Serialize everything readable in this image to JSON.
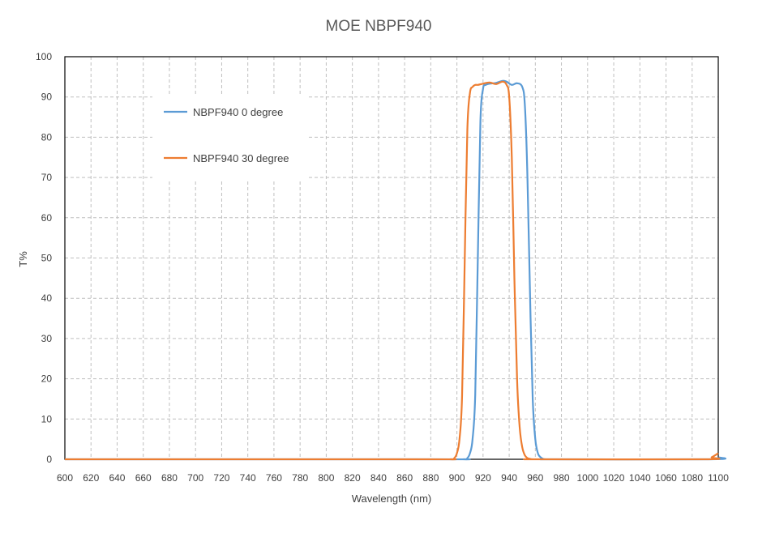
{
  "chart_data": {
    "type": "line",
    "title": "MOE NBPF940",
    "xlabel": "Wavelength (nm)",
    "ylabel": "T%",
    "xlim": [
      600,
      1100
    ],
    "ylim": [
      0,
      100
    ],
    "x_ticks": [
      600,
      620,
      640,
      660,
      680,
      700,
      720,
      740,
      760,
      780,
      800,
      820,
      840,
      860,
      880,
      900,
      920,
      940,
      960,
      980,
      1000,
      1020,
      1040,
      1060,
      1080,
      1100
    ],
    "x_tick_labels": [
      "600",
      "620",
      "640",
      "660",
      "680",
      "700",
      "720",
      "740",
      "760",
      "780",
      "800",
      "820",
      "840",
      "860",
      "880",
      "900",
      "920",
      "940",
      "960",
      "980",
      "1000",
      "1020",
      "1040",
      "1060",
      "1080",
      "1100"
    ],
    "y_ticks": [
      0,
      10,
      20,
      30,
      40,
      50,
      60,
      70,
      80,
      90,
      100
    ],
    "grid": true,
    "legend_position": "top-left",
    "series": [
      {
        "name": "NBPF940 0 degree",
        "color": "#5B9BD5",
        "x": [
          600,
          880,
          905,
          908,
          910,
          912,
          914,
          916,
          918,
          920,
          922,
          925,
          930,
          935,
          938,
          942,
          946,
          950,
          952,
          954,
          956,
          958,
          960,
          962,
          964,
          966,
          968,
          975,
          1095,
          1100
        ],
        "y": [
          0,
          0,
          0,
          0.3,
          1.5,
          5,
          16,
          50,
          84,
          92,
          93,
          93.3,
          93.5,
          94,
          93.8,
          93,
          93.4,
          92.5,
          88,
          70,
          40,
          15,
          5,
          1.5,
          0.5,
          0.1,
          0,
          0,
          0,
          0.5
        ]
      },
      {
        "name": "NBPF940 30 degree",
        "color": "#ED7D31",
        "x": [
          600,
          870,
          895,
          898,
          900,
          902,
          904,
          906,
          908,
          910,
          912,
          914,
          916,
          920,
          925,
          930,
          935,
          938,
          940,
          942,
          944,
          946,
          948,
          950,
          952,
          954,
          956,
          958,
          962,
          1090,
          1095,
          1100
        ],
        "y": [
          0,
          0,
          0,
          0.3,
          1.5,
          5,
          16,
          50,
          82,
          91,
          92.5,
          93,
          93,
          93.3,
          93.6,
          93.2,
          93.8,
          93,
          90,
          75,
          45,
          20,
          8,
          3,
          1,
          0.3,
          0.1,
          0,
          0,
          0,
          0.5,
          1.5
        ]
      }
    ]
  }
}
